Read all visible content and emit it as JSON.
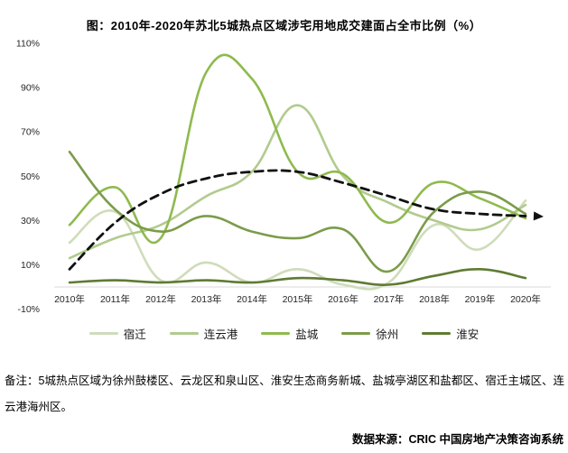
{
  "title": "图：2010年-2020年苏北5城热点区域涉宅用地成交建面占全市比例（%）",
  "note": "备注：5城热点区域为徐州鼓楼区、云龙区和泉山区、淮安生态商务新城、盐城亭湖区和盐都区、宿迁主城区、连云港海州区。",
  "source": "数据来源：CRIC 中国房地产决策咨询系统",
  "axis": {
    "y_tick_labels": [
      "110%",
      "90%",
      "70%",
      "50%",
      "30%",
      "10%",
      "-10%"
    ],
    "x_tick_labels": [
      "2010年",
      "2011年",
      "2012年",
      "2013年",
      "2014年",
      "2015年",
      "2016年",
      "2017年",
      "2018年",
      "2019年",
      "2020年"
    ]
  },
  "colors": {
    "axis_line": "#d9d9d9",
    "trend_line": "#111111",
    "background": "#ffffff"
  },
  "chart_data": {
    "type": "line",
    "title": "图：2010年-2020年苏北5城热点区域涉宅用地成交建面占全市比例（%）",
    "categories": [
      "2010年",
      "2011年",
      "2012年",
      "2013年",
      "2014年",
      "2015年",
      "2016年",
      "2017年",
      "2018年",
      "2019年",
      "2020年"
    ],
    "ylim": [
      -10,
      110
    ],
    "y_ticks": [
      110,
      90,
      70,
      50,
      30,
      10,
      -10
    ],
    "grid": false,
    "legend_position": "bottom",
    "smooth": true,
    "series": [
      {
        "key": "suqian",
        "name": "宿迁",
        "color": "#cfdcba",
        "in_legend": true,
        "style": "solid",
        "values": [
          20,
          34,
          3,
          11,
          2,
          8,
          1,
          2,
          28,
          17,
          39
        ]
      },
      {
        "key": "lianyungang",
        "name": "连云港",
        "color": "#b1cb8e",
        "in_legend": true,
        "style": "solid",
        "values": [
          13,
          22,
          28,
          41,
          52,
          82,
          50,
          38,
          30,
          26,
          37
        ]
      },
      {
        "key": "yancheng",
        "name": "盐城",
        "color": "#8eba4e",
        "in_legend": true,
        "style": "solid",
        "values": [
          28,
          45,
          22,
          97,
          94,
          52,
          51,
          29,
          47,
          40,
          31
        ]
      },
      {
        "key": "xuzhou",
        "name": "徐州",
        "color": "#7b9c4a",
        "in_legend": true,
        "style": "solid",
        "values": [
          61,
          35,
          25,
          32,
          25,
          22,
          26,
          7,
          34,
          43,
          33
        ]
      },
      {
        "key": "huaian",
        "name": "淮安",
        "color": "#5f7b33",
        "in_legend": true,
        "style": "solid",
        "values": [
          2,
          3,
          2,
          3,
          2,
          4,
          3,
          1,
          5,
          8,
          4
        ]
      },
      {
        "key": "trend",
        "name": "趋势线",
        "color": "#111111",
        "in_legend": false,
        "style": "dashed",
        "arrow_end": true,
        "values": [
          8,
          29,
          42,
          49,
          52,
          52,
          47,
          41,
          35,
          33,
          32
        ]
      }
    ]
  }
}
